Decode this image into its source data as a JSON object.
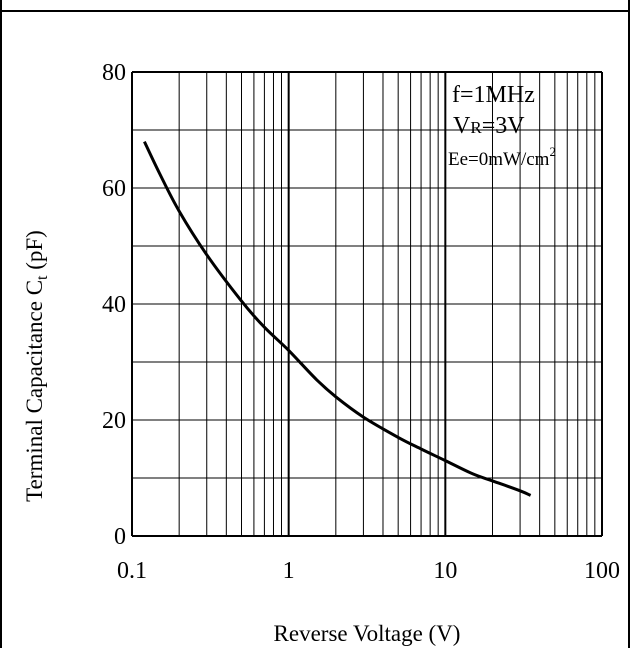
{
  "chart_data": {
    "type": "line",
    "xscale": "log",
    "xlim": [
      0.1,
      100
    ],
    "ylim": [
      0,
      80
    ],
    "xticks": [
      0.1,
      1,
      10,
      100
    ],
    "xtick_labels": [
      "0.1",
      "1",
      "10",
      "100"
    ],
    "yticks": [
      0,
      20,
      40,
      60,
      80
    ],
    "ytick_labels": [
      "0",
      "20",
      "40",
      "60",
      "80"
    ],
    "xlabel": "Reverse Voltage (V)",
    "ylabel": {
      "main": "Terminal Capacitance C",
      "subscript": "t",
      "unit": " (pF)"
    },
    "grid": true,
    "annotation": {
      "line1": "f=1MHz",
      "line2_main": "V",
      "line2_sub": "R",
      "line2_rest": "=3V",
      "line3_main": "Ee=0mW/cm",
      "line3_sup": "2"
    },
    "series": [
      {
        "x": [
          0.12,
          0.15,
          0.2,
          0.3,
          0.5,
          0.7,
          1,
          1.5,
          2,
          3,
          5,
          7,
          10,
          15,
          20,
          30,
          35
        ],
        "y": [
          68,
          62.5,
          56,
          48.5,
          40.5,
          36,
          32,
          27,
          24,
          20.5,
          17,
          15,
          13,
          10.7,
          9.5,
          7.8,
          7
        ]
      }
    ]
  },
  "colors": {
    "line": "#000000",
    "grid": "#000000",
    "background": "#ffffff"
  }
}
